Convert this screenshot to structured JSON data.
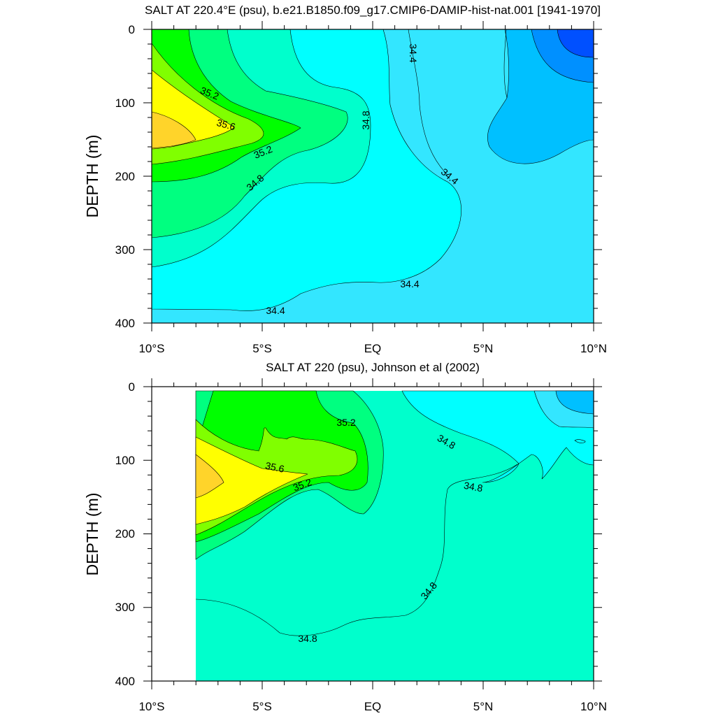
{
  "chart_data": [
    {
      "type": "contour",
      "title": "SALT AT 220.4°E (psu), b.e21.B1850.f09_g17.CMIP6-DAMIP-hist-nat.001 [1941-1970]",
      "xlabel": "",
      "ylabel": "DEPTH (m)",
      "x_range": [
        -10,
        10
      ],
      "y_range": [
        400,
        0
      ],
      "x_ticks": [
        "10°S",
        "5°S",
        "EQ",
        "5°N",
        "10°N"
      ],
      "y_ticks": [
        "0",
        "100",
        "200",
        "300",
        "400"
      ],
      "contour_labels": [
        "35.2",
        "35.6",
        "35.2",
        "34.8",
        "34.8",
        "34.4",
        "34.4",
        "34.4",
        "34.4"
      ],
      "levels": [
        34.0,
        34.2,
        34.4,
        34.6,
        34.8,
        35.0,
        35.2,
        35.4,
        35.6,
        35.8
      ],
      "max_value_region": {
        "lat": -9.2,
        "depth_m": 150,
        "salinity_psu": 35.8
      },
      "min_value_region": {
        "lat": 9.7,
        "depth_m": 10,
        "salinity_psu": 34.0
      },
      "colors": [
        "#0050ff",
        "#0090ff",
        "#00c0ff",
        "#33e6ff",
        "#00ffff",
        "#00ffcc",
        "#00ff80",
        "#00ff00",
        "#80ff00",
        "#ffff00",
        "#ffd42a"
      ]
    },
    {
      "type": "contour",
      "title": "SALT AT 220 (psu), Johnson et al (2002)",
      "xlabel": "",
      "ylabel": "DEPTH (m)",
      "x_range": [
        -10,
        10
      ],
      "y_range": [
        400,
        0
      ],
      "data_lat_range": [
        -8,
        10
      ],
      "x_ticks": [
        "10°S",
        "5°S",
        "EQ",
        "5°N",
        "10°N"
      ],
      "y_ticks": [
        "0",
        "100",
        "200",
        "300",
        "400"
      ],
      "contour_labels": [
        "35.2",
        "35.6",
        "35.2",
        "34.8",
        "34.8",
        "34.8",
        "34.8"
      ],
      "levels": [
        34.4,
        34.6,
        34.8,
        35.0,
        35.2,
        35.4,
        35.6,
        35.8
      ],
      "max_value_region": {
        "lat": -7.0,
        "depth_m": 130,
        "salinity_psu": 35.8
      },
      "min_value_region": {
        "lat": 9.6,
        "depth_m": 20,
        "salinity_psu": 34.4
      },
      "colors": [
        "#00c0ff",
        "#33e6ff",
        "#00ffff",
        "#00ffcc",
        "#00ff80",
        "#00ff00",
        "#80ff00",
        "#ffff00",
        "#ffd42a"
      ]
    }
  ]
}
